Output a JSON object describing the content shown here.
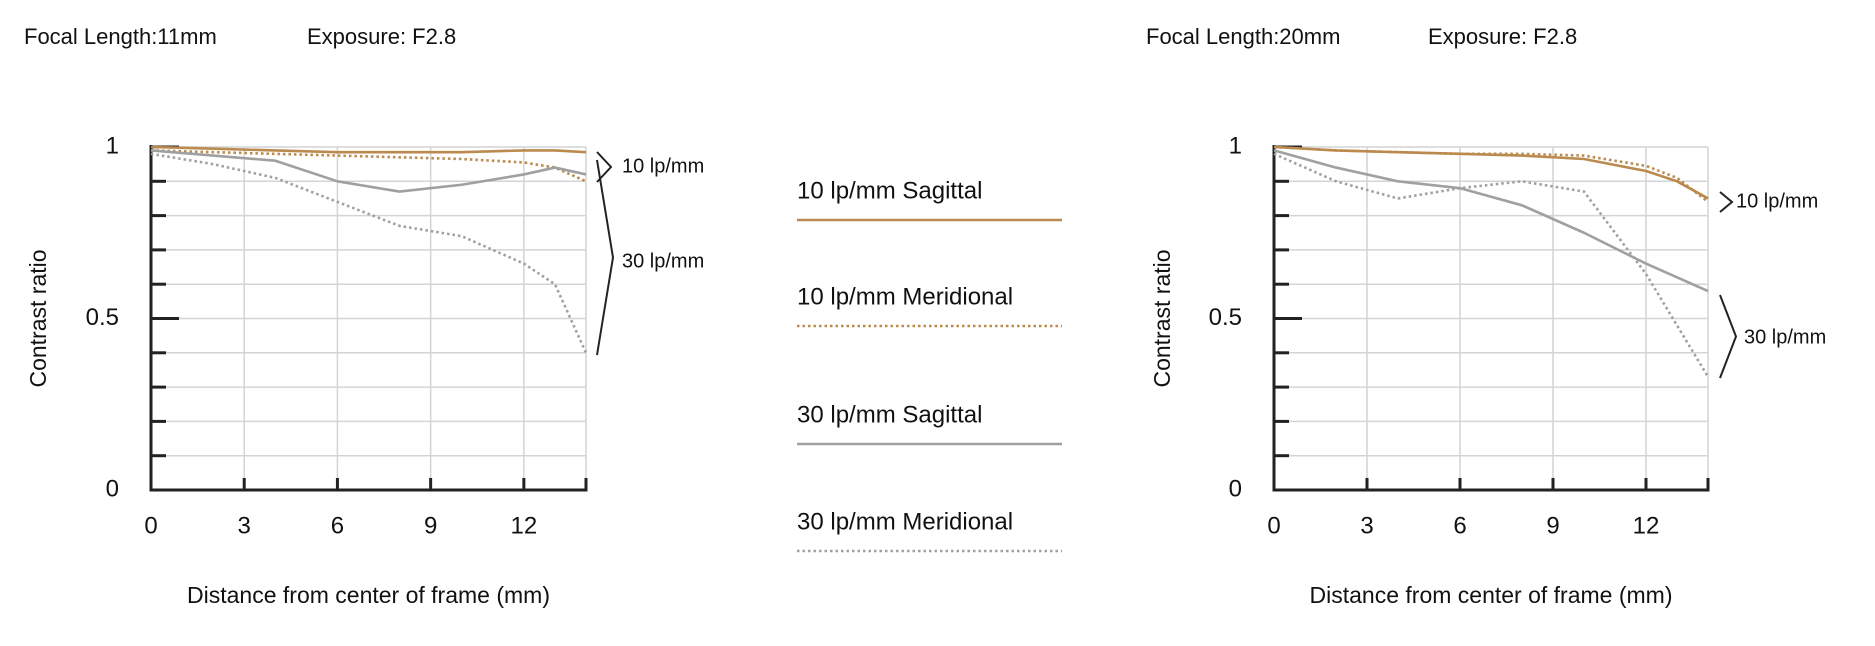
{
  "chart_data": [
    {
      "type": "line",
      "title": "Focal Length:11mm",
      "subtitle": "Exposure: F2.8",
      "y_label": "Contrast ratio",
      "x_label": "Distance from center of frame (mm)",
      "xlim": [
        0,
        14
      ],
      "xticks": [
        0,
        3,
        6,
        9,
        12
      ],
      "ylim": [
        0,
        1
      ],
      "yticks": [
        0,
        0.5,
        1
      ],
      "minor_yticks": [
        0.1,
        0.2,
        0.3,
        0.4,
        0.6,
        0.7,
        0.8,
        0.9
      ],
      "grid": true,
      "annotations": [
        "10 lp/mm",
        "30 lp/mm"
      ],
      "x": [
        0,
        2,
        4,
        6,
        8,
        10,
        12,
        13,
        14
      ],
      "series": [
        {
          "name": "10 lp/mm Sagittal",
          "color": "#bb8a4f",
          "dotted": false,
          "values": [
            1,
            0.995,
            0.99,
            0.985,
            0.985,
            0.985,
            0.99,
            0.99,
            0.985
          ]
        },
        {
          "name": "10 lp/mm Meridional",
          "color": "#bb8a4f",
          "dotted": true,
          "values": [
            0.99,
            0.985,
            0.98,
            0.975,
            0.97,
            0.965,
            0.955,
            0.94,
            0.9
          ]
        },
        {
          "name": "30 lp/mm Sagittal",
          "color": "#a0a0a0",
          "dotted": false,
          "values": [
            0.99,
            0.975,
            0.96,
            0.9,
            0.87,
            0.89,
            0.92,
            0.94,
            0.92
          ]
        },
        {
          "name": "30 lp/mm Meridional",
          "color": "#a0a0a0",
          "dotted": true,
          "values": [
            0.98,
            0.95,
            0.91,
            0.84,
            0.77,
            0.74,
            0.66,
            0.6,
            0.4
          ]
        }
      ]
    },
    {
      "type": "line",
      "title": "Focal Length:20mm",
      "subtitle": "Exposure: F2.8",
      "y_label": "Contrast ratio",
      "x_label": "Distance from center of frame (mm)",
      "xlim": [
        0,
        14
      ],
      "xticks": [
        0,
        3,
        6,
        9,
        12
      ],
      "ylim": [
        0,
        1
      ],
      "yticks": [
        0,
        0.5,
        1
      ],
      "minor_yticks": [
        0.1,
        0.2,
        0.3,
        0.4,
        0.6,
        0.7,
        0.8,
        0.9
      ],
      "grid": true,
      "annotations": [
        "10 lp/mm",
        "30 lp/mm"
      ],
      "x": [
        0,
        2,
        4,
        6,
        8,
        10,
        12,
        13,
        14
      ],
      "series": [
        {
          "name": "10 lp/mm Sagittal",
          "color": "#bb8a4f",
          "dotted": false,
          "values": [
            1,
            0.99,
            0.985,
            0.98,
            0.975,
            0.965,
            0.93,
            0.9,
            0.85
          ]
        },
        {
          "name": "10 lp/mm Meridional",
          "color": "#bb8a4f",
          "dotted": true,
          "values": [
            1,
            0.99,
            0.985,
            0.98,
            0.98,
            0.975,
            0.945,
            0.91,
            0.84
          ]
        },
        {
          "name": "30 lp/mm Sagittal",
          "color": "#a0a0a0",
          "dotted": false,
          "values": [
            0.99,
            0.94,
            0.9,
            0.88,
            0.83,
            0.75,
            0.66,
            0.62,
            0.58
          ]
        },
        {
          "name": "30 lp/mm Meridional",
          "color": "#a0a0a0",
          "dotted": true,
          "values": [
            0.98,
            0.9,
            0.85,
            0.88,
            0.9,
            0.87,
            0.63,
            0.48,
            0.33
          ]
        }
      ]
    }
  ]
}
